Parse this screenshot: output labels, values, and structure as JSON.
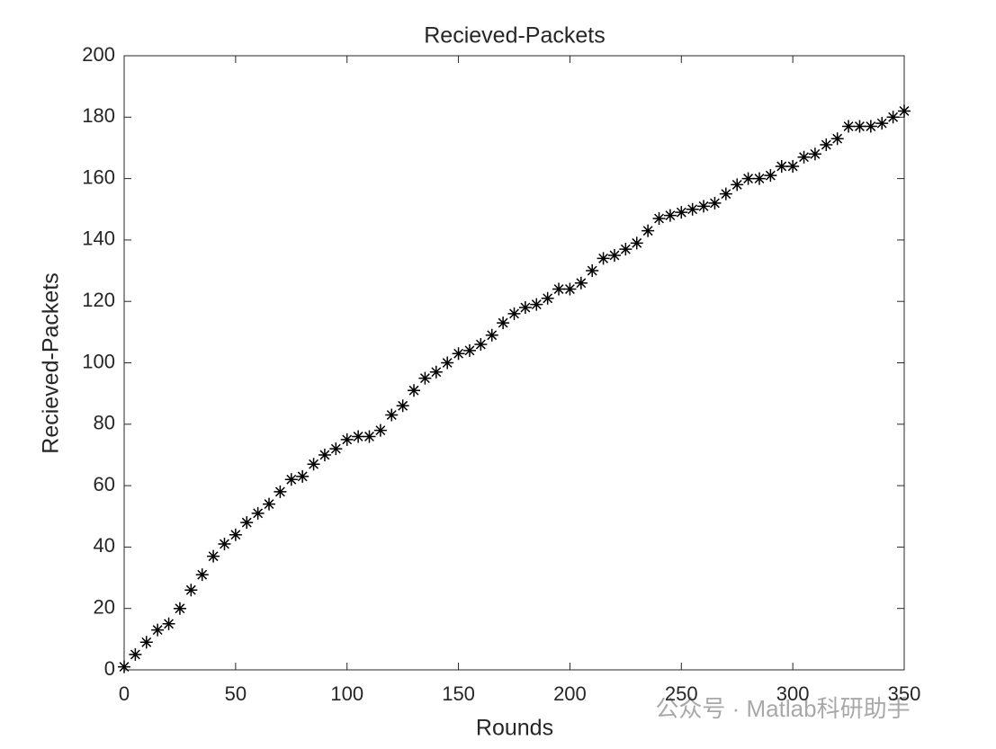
{
  "chart_data": {
    "type": "scatter",
    "title": "Recieved-Packets",
    "xlabel": "Rounds",
    "ylabel": "Recieved-Packets",
    "marker": "*",
    "color": "#000000",
    "x": [
      0,
      5,
      10,
      15,
      20,
      25,
      30,
      35,
      40,
      45,
      50,
      55,
      60,
      65,
      70,
      75,
      80,
      85,
      90,
      95,
      100,
      105,
      110,
      115,
      120,
      125,
      130,
      135,
      140,
      145,
      150,
      155,
      160,
      165,
      170,
      175,
      180,
      185,
      190,
      195,
      200,
      205,
      210,
      215,
      220,
      225,
      230,
      235,
      240,
      245,
      250,
      255,
      260,
      265,
      270,
      275,
      280,
      285,
      290,
      295,
      300,
      305,
      310,
      315,
      320,
      325,
      330,
      335,
      340,
      345,
      350
    ],
    "values": [
      1,
      5,
      9,
      13,
      15,
      20,
      26,
      31,
      37,
      41,
      44,
      48,
      51,
      54,
      58,
      62,
      63,
      67,
      70,
      72,
      75,
      76,
      76,
      78,
      83,
      86,
      91,
      95,
      97,
      100,
      103,
      104,
      106,
      109,
      113,
      116,
      118,
      119,
      121,
      124,
      124,
      126,
      130,
      134,
      135,
      137,
      139,
      143,
      147,
      148,
      149,
      150,
      151,
      152,
      155,
      158,
      160,
      160,
      161,
      164,
      164,
      167,
      168,
      171,
      173,
      177,
      177,
      177,
      178,
      180,
      182
    ],
    "xlim": [
      0,
      350
    ],
    "xticks": [
      0,
      50,
      100,
      150,
      200,
      250,
      300,
      350
    ],
    "ylim": [
      0,
      200
    ],
    "yticks": [
      0,
      20,
      40,
      60,
      80,
      100,
      120,
      140,
      160,
      180,
      200
    ],
    "watermark": "公众号 · Matlab科研助手"
  }
}
